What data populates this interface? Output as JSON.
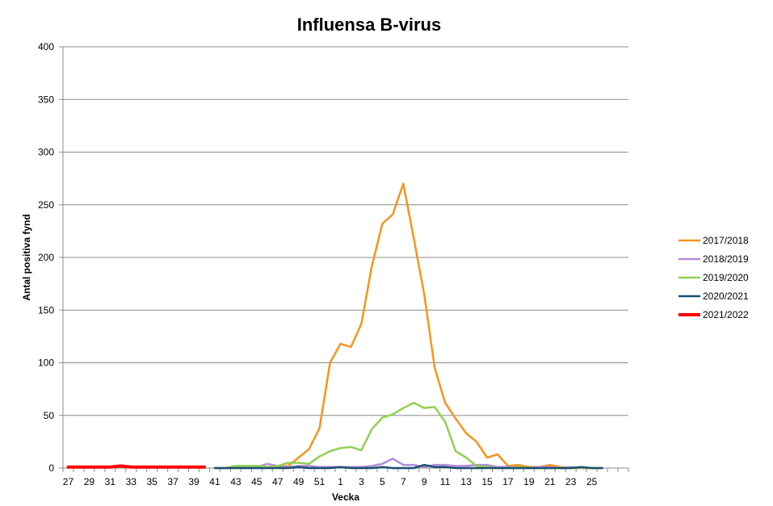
{
  "chart_data": {
    "type": "line",
    "title": "Influensa B-virus",
    "xlabel": "Vecka",
    "ylabel": "Antal positiva fynd",
    "ylim": [
      0,
      400
    ],
    "yticks": [
      0,
      50,
      100,
      150,
      200,
      250,
      300,
      350,
      400
    ],
    "grid": true,
    "legend_position": "right",
    "categories": [
      "27",
      "28",
      "29",
      "30",
      "31",
      "32",
      "33",
      "34",
      "35",
      "36",
      "37",
      "38",
      "39",
      "40",
      "41",
      "42",
      "43",
      "44",
      "45",
      "46",
      "47",
      "48",
      "49",
      "50",
      "51",
      "52",
      "1",
      "2",
      "3",
      "4",
      "5",
      "6",
      "7",
      "8",
      "9",
      "10",
      "11",
      "12",
      "13",
      "14",
      "15",
      "16",
      "17",
      "18",
      "19",
      "20",
      "21",
      "22",
      "23",
      "24",
      "25",
      "26",
      "",
      ""
    ],
    "xtick_labels": [
      "27",
      "29",
      "31",
      "33",
      "35",
      "37",
      "39",
      "41",
      "43",
      "45",
      "47",
      "49",
      "51",
      "1",
      "3",
      "5",
      "7",
      "9",
      "11",
      "13",
      "15",
      "17",
      "19",
      "21",
      "23",
      "25"
    ],
    "series": [
      {
        "name": "2017/2018",
        "color": "#F7941D",
        "values": [
          null,
          null,
          null,
          null,
          null,
          null,
          null,
          null,
          null,
          null,
          null,
          null,
          null,
          null,
          null,
          null,
          null,
          1,
          2,
          1,
          1,
          2,
          10,
          18,
          38,
          100,
          118,
          115,
          137,
          192,
          232,
          241,
          270,
          218,
          165,
          95,
          62,
          47,
          33,
          25,
          10,
          13,
          2,
          3,
          1,
          1,
          3,
          1,
          0,
          0,
          0,
          0,
          null,
          null
        ]
      },
      {
        "name": "2018/2019",
        "color": "#B38BDB",
        "values": [
          null,
          null,
          null,
          null,
          null,
          null,
          null,
          null,
          null,
          null,
          null,
          null,
          null,
          null,
          0,
          0,
          1,
          1,
          1,
          4,
          2,
          1,
          2,
          2,
          1,
          1,
          1,
          1,
          1,
          2,
          4,
          9,
          3,
          3,
          1,
          3,
          3,
          2,
          2,
          3,
          3,
          1,
          1,
          1,
          0,
          1,
          1,
          0,
          1,
          0,
          0,
          0,
          null,
          null
        ]
      },
      {
        "name": "2019/2020",
        "color": "#92D050",
        "values": [
          null,
          null,
          null,
          null,
          null,
          null,
          null,
          null,
          null,
          null,
          null,
          null,
          null,
          null,
          0,
          0,
          2,
          2,
          2,
          1,
          2,
          5,
          5,
          4,
          11,
          16,
          19,
          20,
          17,
          37,
          48,
          51,
          57,
          62,
          57,
          58,
          44,
          16,
          10,
          2,
          1,
          0,
          0,
          1,
          0,
          0,
          0,
          0,
          0,
          0,
          0,
          0,
          null,
          null
        ]
      },
      {
        "name": "2020/2021",
        "color": "#1B4F72",
        "values": [
          null,
          null,
          null,
          null,
          null,
          null,
          null,
          null,
          null,
          null,
          null,
          null,
          null,
          null,
          0,
          0,
          0,
          0,
          0,
          0,
          0,
          0,
          1,
          0,
          0,
          0,
          1,
          0,
          0,
          0,
          1,
          0,
          0,
          0,
          3,
          1,
          1,
          0,
          0,
          0,
          0,
          0,
          0,
          0,
          0,
          0,
          0,
          0,
          0,
          1,
          0,
          0,
          null,
          null
        ]
      },
      {
        "name": "2021/2022",
        "color": "#FF0000",
        "values": [
          1,
          1,
          1,
          1,
          1,
          2,
          1,
          1,
          1,
          1,
          1,
          1,
          1,
          1,
          null,
          null,
          null,
          null,
          null,
          null,
          null,
          null,
          null,
          null,
          null,
          null,
          null,
          null,
          null,
          null,
          null,
          null,
          null,
          null,
          null,
          null,
          null,
          null,
          null,
          null,
          null,
          null,
          null,
          null,
          null,
          null,
          null,
          null,
          null,
          null,
          null,
          null,
          null,
          null
        ]
      }
    ]
  }
}
